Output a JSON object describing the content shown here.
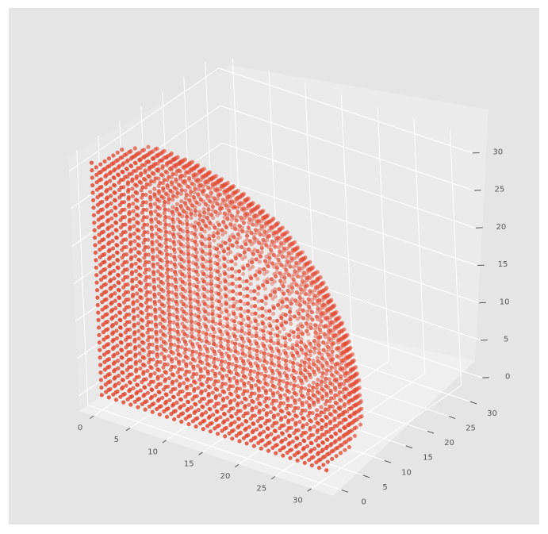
{
  "chart_data": {
    "type": "scatter",
    "subtype": "3d-scatter",
    "title": "",
    "xlabel": "",
    "ylabel": "",
    "zlabel": "",
    "xlim": [
      -2,
      33
    ],
    "ylim": [
      -2,
      33
    ],
    "zlim": [
      -2,
      32
    ],
    "x_ticks": [
      0,
      5,
      10,
      15,
      20,
      25,
      30
    ],
    "y_ticks": [
      0,
      5,
      10,
      15,
      20,
      25,
      30
    ],
    "z_ticks": [
      0,
      5,
      10,
      15,
      20,
      25,
      30
    ],
    "x_tick_labels": [
      "0",
      "5",
      "10",
      "15",
      "20",
      "25",
      "30"
    ],
    "y_tick_labels": [
      "0",
      "5",
      "10",
      "15",
      "20",
      "25",
      "30"
    ],
    "z_tick_labels": [
      "0",
      "5",
      "10",
      "15",
      "20",
      "25",
      "30"
    ],
    "grid": true,
    "style": "ggplot",
    "series": [
      {
        "marker": "circle",
        "color": "#E24A33",
        "shape": "voxelized sphere octant: integer lattice points with 0 ≤ x,y,z ≤ 31 and x² + y² + z² ≤ 31², only surface shell visible",
        "center": [
          0,
          0,
          0
        ],
        "radius": 31,
        "grid_step": 1
      }
    ],
    "colors": {
      "figure_background": "#ffffff",
      "axes_background": "#E5E5E5",
      "pane_left": "#E8E8E8",
      "pane_back": "#EBEBEB",
      "pane_floor": "#EEEEEE",
      "grid": "#ffffff",
      "marker": "#E24A33",
      "tick_text": "#555555"
    }
  }
}
